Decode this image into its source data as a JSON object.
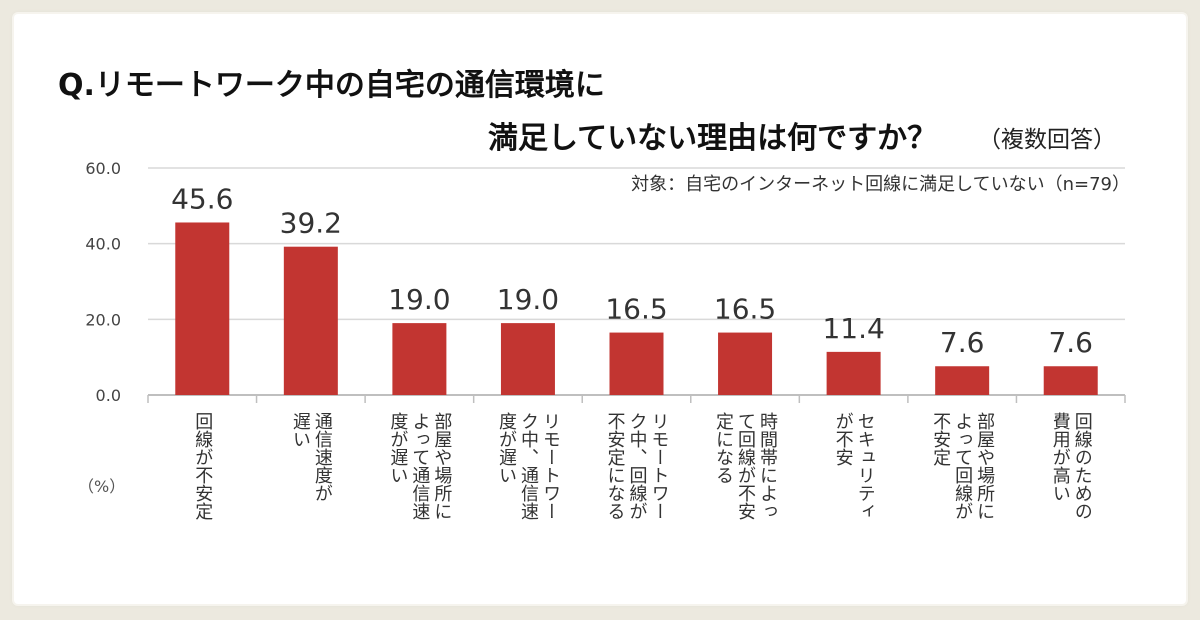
{
  "title_line1": "Q.リモートワーク中の自宅の通信環境に",
  "title_line2": "満足していない理由は何ですか？",
  "title_note": "（複数回答）",
  "subtitle": "対象：自宅のインターネット回線に満足していない（n=79）",
  "unit": "（%）",
  "colors": {
    "bar": "#c23531",
    "grid": "#d9d9d9",
    "background": "#ece9df"
  },
  "chart_data": {
    "type": "bar",
    "ylim": [
      0,
      60
    ],
    "yticks": [
      "0.0",
      "20.0",
      "40.0",
      "60.0"
    ],
    "grid": true,
    "categories": [
      "回線が不安定",
      "通信速度が遅い",
      "部屋や場所によって通信速度が遅い",
      "リモートワーク中、通信速度が遅い",
      "リモートワーク中、回線が不安定になる",
      "時間帯によって回線が不安定になる",
      "セキュリティが不安",
      "部屋や場所によって回線が不安定",
      "回線のための費用が高い"
    ],
    "category_lines": [
      [
        "回線が不安定"
      ],
      [
        "通信速度が",
        "遅い"
      ],
      [
        "部屋や場所に",
        "よって通信速",
        "度が遅い"
      ],
      [
        "リモートワー",
        "ク中、通信速",
        "度が遅い"
      ],
      [
        "リモートワー",
        "ク中、回線が",
        "不安定になる"
      ],
      [
        "時間帯によっ",
        "て回線が不安",
        "定になる"
      ],
      [
        "セキュリティ",
        "が不安"
      ],
      [
        "部屋や場所に",
        "よって回線が",
        "不安定"
      ],
      [
        "回線のための",
        "費用が高い"
      ]
    ],
    "values": [
      45.6,
      39.2,
      19.0,
      19.0,
      16.5,
      16.5,
      11.4,
      7.6,
      7.6
    ],
    "value_labels": [
      "45.6",
      "39.2",
      "19.0",
      "19.0",
      "16.5",
      "16.5",
      "11.4",
      "7.6",
      "7.6"
    ]
  }
}
